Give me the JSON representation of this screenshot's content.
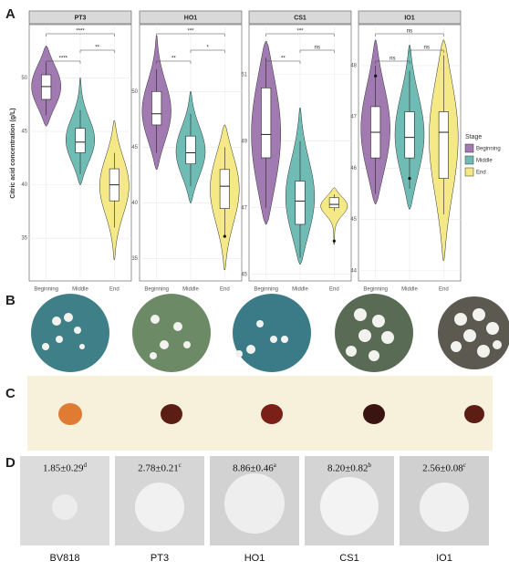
{
  "panels": [
    "A",
    "B",
    "C",
    "D"
  ],
  "legend": {
    "title": "Stage"
  },
  "chart_data": [
    {
      "type": "violin",
      "title": "PT3",
      "y_label": "Citric acid concentration (g/L)",
      "categories": [
        "Beginning",
        "Middle",
        "End"
      ],
      "colors": [
        "#a07ab0",
        "#6fbcb5",
        "#f5e887"
      ],
      "ylim": [
        31,
        55
      ],
      "yticks": [
        35,
        40,
        45,
        50
      ],
      "violins": [
        [
          45.5,
          53
        ],
        [
          40,
          50
        ],
        [
          33,
          46
        ]
      ],
      "boxes": [
        {
          "low": 46.5,
          "q1": 48,
          "median": 49.2,
          "q3": 50.3,
          "high": 51.5
        },
        {
          "low": 41,
          "q1": 43,
          "median": 44,
          "q3": 45.3,
          "high": 47
        },
        {
          "low": 36,
          "q1": 38.5,
          "median": 40,
          "q3": 41.5,
          "high": 43
        }
      ],
      "outliers": [
        [],
        [],
        []
      ],
      "comparisons": [
        {
          "from": 0,
          "to": 2,
          "label": "****"
        },
        {
          "from": 1,
          "to": 2,
          "label": "**"
        },
        {
          "from": 0,
          "to": 1,
          "label": "****"
        }
      ]
    },
    {
      "type": "violin",
      "title": "HO1",
      "categories": [
        "Beginning",
        "Middle",
        "End"
      ],
      "colors": [
        "#a07ab0",
        "#6fbcb5",
        "#f5e887"
      ],
      "ylim": [
        33,
        56
      ],
      "yticks": [
        35,
        40,
        45,
        50
      ],
      "violins": [
        [
          43,
          55
        ],
        [
          40,
          50
        ],
        [
          34,
          47
        ]
      ],
      "boxes": [
        {
          "low": 44.5,
          "q1": 47,
          "median": 48,
          "q3": 50,
          "high": 52
        },
        {
          "low": 41.5,
          "q1": 43.5,
          "median": 44.5,
          "q3": 46,
          "high": 48
        },
        {
          "low": 37,
          "q1": 39.5,
          "median": 41.5,
          "q3": 43,
          "high": 45
        }
      ],
      "outliers": [
        [],
        [],
        [
          37
        ]
      ],
      "comparisons": [
        {
          "from": 0,
          "to": 2,
          "label": "***"
        },
        {
          "from": 1,
          "to": 2,
          "label": "*"
        },
        {
          "from": 0,
          "to": 1,
          "label": "**"
        }
      ]
    },
    {
      "type": "violin",
      "title": "CS1",
      "categories": [
        "Beginning",
        "Middle",
        "End"
      ],
      "colors": [
        "#a07ab0",
        "#6fbcb5",
        "#f5e887"
      ],
      "ylim": [
        44.8,
        52.5
      ],
      "yticks": [
        45,
        47,
        49,
        51
      ],
      "violins": [
        [
          46.5,
          52
        ],
        [
          45.3,
          50
        ],
        [
          45.9,
          47.6
        ]
      ],
      "boxes": [
        {
          "low": 47,
          "q1": 48.5,
          "median": 49.2,
          "q3": 50.6,
          "high": 51.5
        },
        {
          "low": 45.5,
          "q1": 46.5,
          "median": 47.2,
          "q3": 47.8,
          "high": 49
        },
        {
          "low": 46.9,
          "q1": 47,
          "median": 47.1,
          "q3": 47.3,
          "high": 47.4
        }
      ],
      "outliers": [
        [],
        [],
        [
          46
        ]
      ],
      "comparisons": [
        {
          "from": 0,
          "to": 2,
          "label": "***"
        },
        {
          "from": 1,
          "to": 2,
          "label": "ns"
        },
        {
          "from": 0,
          "to": 1,
          "label": "**"
        }
      ]
    },
    {
      "type": "violin",
      "title": "IO1",
      "categories": [
        "Beginning",
        "Middle",
        "End"
      ],
      "colors": [
        "#a07ab0",
        "#6fbcb5",
        "#f5e887"
      ],
      "ylim": [
        43.8,
        48.8
      ],
      "yticks": [
        44,
        45,
        46,
        47,
        48
      ],
      "violins": [
        [
          45.3,
          48.5
        ],
        [
          45.2,
          48.4
        ],
        [
          44.2,
          48.5
        ]
      ],
      "boxes": [
        {
          "low": 45.5,
          "q1": 46.2,
          "median": 46.7,
          "q3": 47.2,
          "high": 48
        },
        {
          "low": 45.6,
          "q1": 46.2,
          "median": 46.6,
          "q3": 47.1,
          "high": 47.9
        },
        {
          "low": 45.1,
          "q1": 45.8,
          "median": 46.7,
          "q3": 47.1,
          "high": 48.2
        }
      ],
      "outliers": [
        [
          47.8
        ],
        [
          45.8
        ],
        []
      ],
      "comparisons": [
        {
          "from": 0,
          "to": 2,
          "label": "ns"
        },
        {
          "from": 1,
          "to": 2,
          "label": "ns"
        },
        {
          "from": 0,
          "to": 1,
          "label": "ns"
        }
      ]
    }
  ],
  "halo": {
    "strains": [
      "BV818",
      "PT3",
      "HO1",
      "CS1",
      "IO1"
    ],
    "values": [
      "1.85±0.29",
      "2.78±0.21",
      "8.86±0.46",
      "8.20±0.82",
      "2.56±0.08"
    ],
    "letters": [
      "d",
      "c",
      "a",
      "b",
      "c"
    ]
  }
}
